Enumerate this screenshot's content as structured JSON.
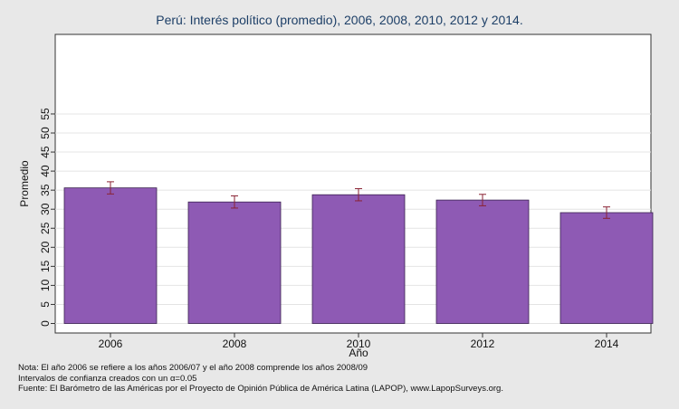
{
  "chart_data": {
    "type": "bar",
    "title": "Perú: Interés político (promedio), 2006, 2008, 2010, 2012 y 2014.",
    "xlabel": "Año",
    "ylabel": "Promedio",
    "categories": [
      "2006",
      "2008",
      "2010",
      "2012",
      "2014"
    ],
    "values": [
      35.6,
      31.9,
      33.8,
      32.4,
      29.1
    ],
    "ci_low": [
      34.0,
      30.3,
      32.2,
      30.9,
      27.6
    ],
    "ci_high": [
      37.2,
      33.5,
      35.4,
      33.9,
      30.6
    ],
    "ylim": [
      0,
      57
    ],
    "yticks": [
      0,
      5,
      10,
      15,
      20,
      25,
      30,
      35,
      40,
      45,
      50,
      55
    ],
    "grid": true,
    "bar_color": "#8e5ab4",
    "errorbar_color": "#8a2233"
  },
  "notes": {
    "line1": "Nota: El año 2006 se refiere a los años 2006/07 y el año 2008 comprende los años 2008/09",
    "line2": "Intervalos de confianza creados con un α=0.05",
    "line3": "Fuente: El Barómetro de las Américas por el Proyecto de Opinión Pública de América Latina (LAPOP), www.LapopSurveys.org."
  }
}
